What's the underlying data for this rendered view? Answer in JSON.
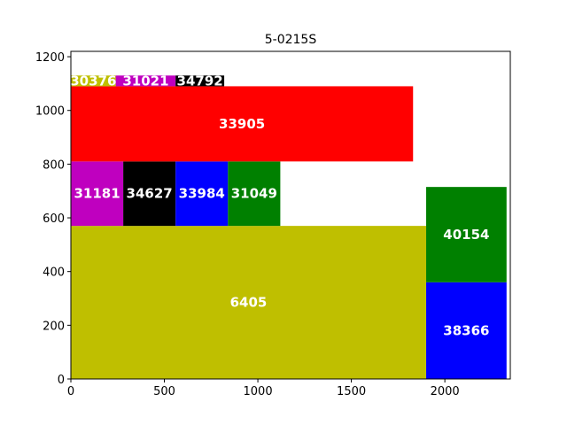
{
  "chart_data": {
    "type": "bar",
    "title": "5-0215S",
    "xlabel": "",
    "ylabel": "",
    "xlim": [
      0,
      2350
    ],
    "ylim": [
      0,
      1220
    ],
    "xticks": [
      0,
      500,
      1000,
      1500,
      2000
    ],
    "yticks": [
      0,
      200,
      400,
      600,
      800,
      1000,
      1200
    ],
    "grid": false,
    "legend": "none",
    "rects": [
      {
        "label": "6405",
        "x": 0,
        "y": 0,
        "w": 1900,
        "h": 570,
        "color": "#bfbf00"
      },
      {
        "label": "38366",
        "x": 1900,
        "y": 0,
        "w": 430,
        "h": 360,
        "color": "#0000ff"
      },
      {
        "label": "40154",
        "x": 1900,
        "y": 360,
        "w": 430,
        "h": 355,
        "color": "#008000"
      },
      {
        "label": "31181",
        "x": 0,
        "y": 570,
        "w": 280,
        "h": 240,
        "color": "#bf00bf"
      },
      {
        "label": "34627",
        "x": 280,
        "y": 570,
        "w": 280,
        "h": 240,
        "color": "#000000"
      },
      {
        "label": "33984",
        "x": 560,
        "y": 570,
        "w": 280,
        "h": 240,
        "color": "#0000ff"
      },
      {
        "label": "31049",
        "x": 840,
        "y": 570,
        "w": 280,
        "h": 240,
        "color": "#008000"
      },
      {
        "label": "33905",
        "x": 0,
        "y": 810,
        "w": 1830,
        "h": 280,
        "color": "#ff0000"
      },
      {
        "label": "30376",
        "x": 0,
        "y": 1090,
        "w": 240,
        "h": 40,
        "color": "#bfbf00"
      },
      {
        "label": "31021",
        "x": 240,
        "y": 1090,
        "w": 320,
        "h": 40,
        "color": "#bf00bf"
      },
      {
        "label": "34792",
        "x": 560,
        "y": 1090,
        "w": 260,
        "h": 40,
        "color": "#000000"
      }
    ]
  }
}
